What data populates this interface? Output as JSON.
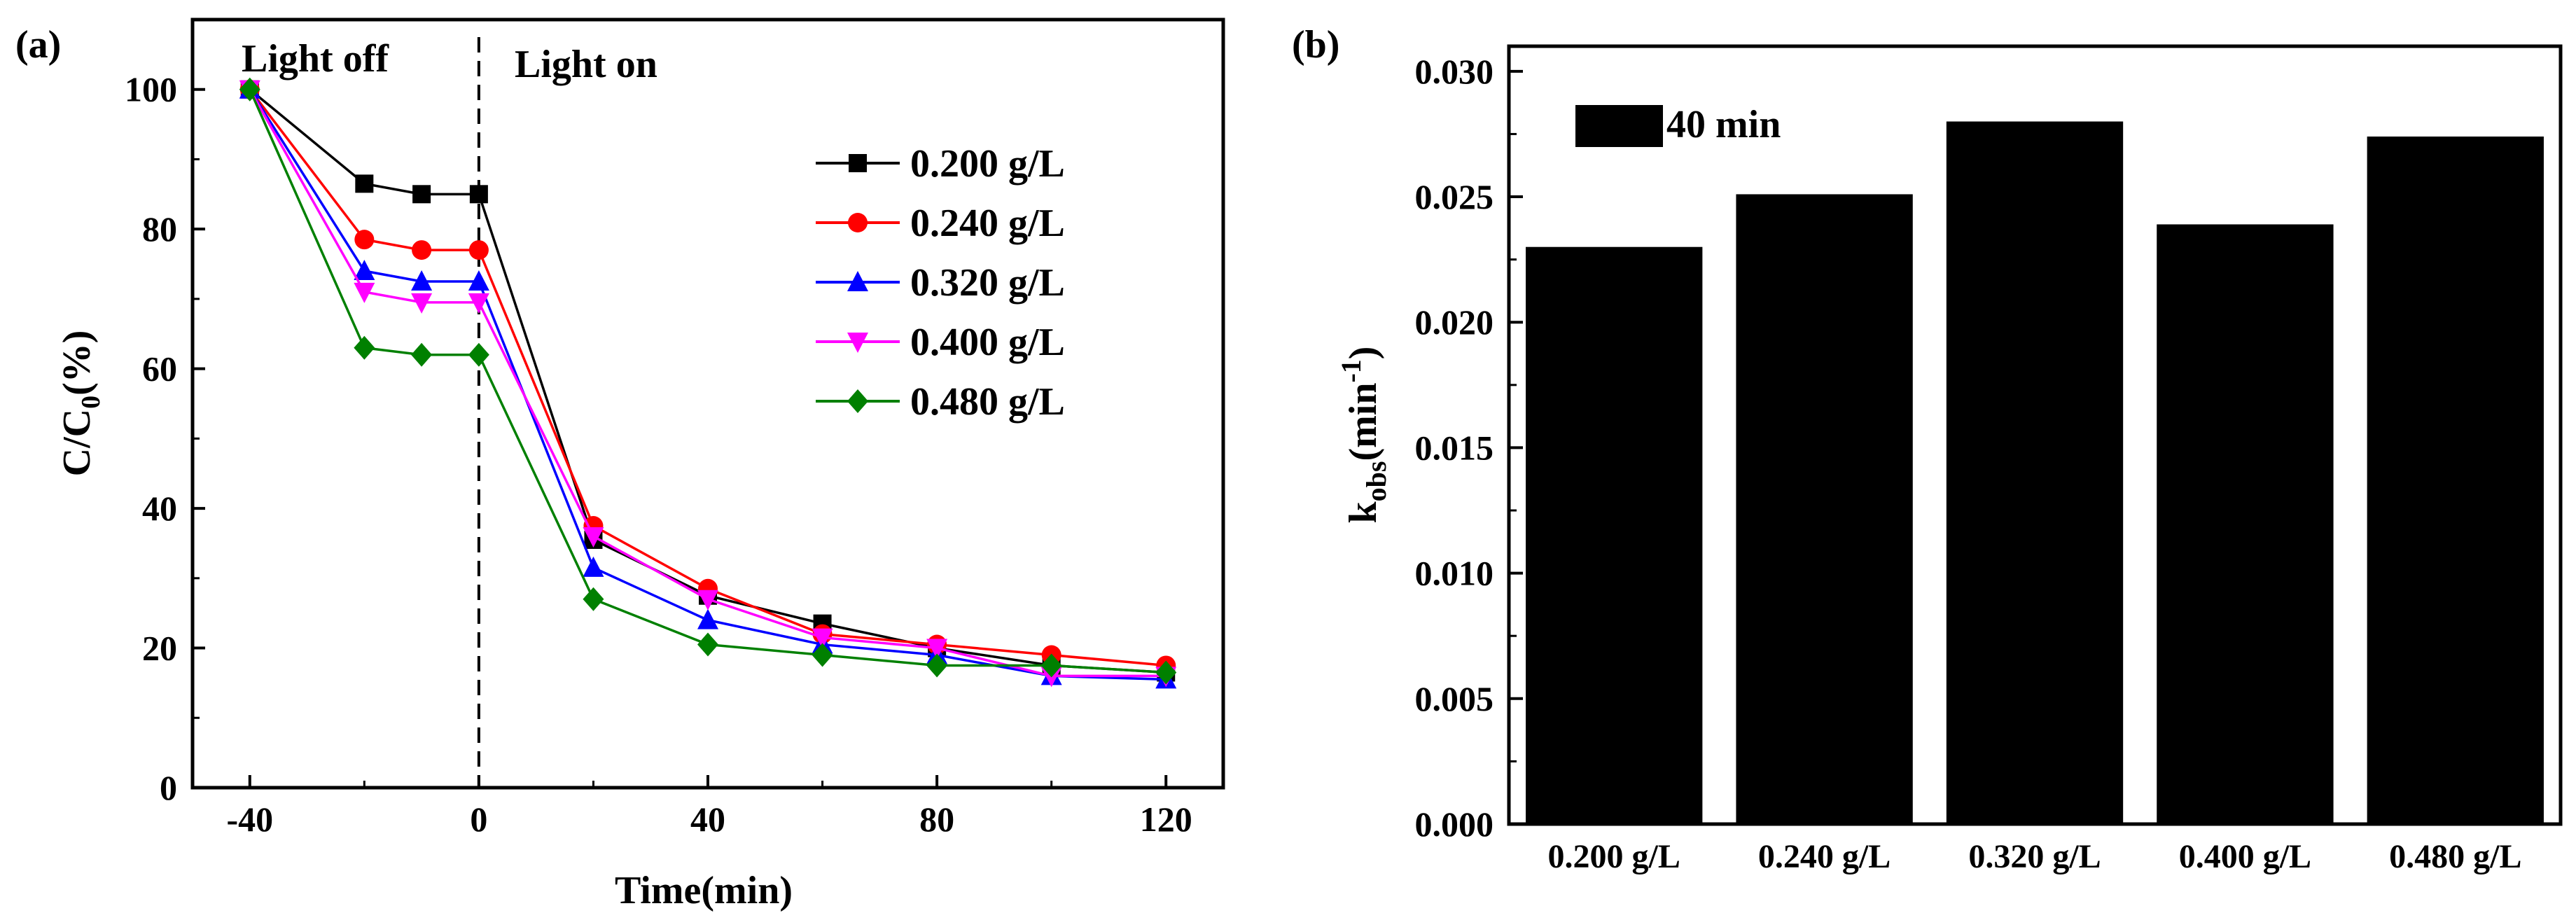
{
  "chart_data": [
    {
      "type": "line",
      "panel_label": "(a)",
      "xlabel": "Time(min)",
      "ylabel_main": "C/C",
      "ylabel_sub": "0",
      "ylabel_tail": "(%)",
      "xlim": [
        -50,
        130
      ],
      "ylim": [
        0,
        110
      ],
      "xticks": [
        -40,
        0,
        40,
        80,
        120
      ],
      "yticks": [
        0,
        20,
        40,
        60,
        80,
        100
      ],
      "x": [
        -40,
        -20,
        -10,
        0,
        20,
        40,
        60,
        80,
        100,
        120
      ],
      "divider_x": 0,
      "annotations": {
        "light_off": "Light off",
        "light_on": "Light on"
      },
      "series": [
        {
          "name": "0.200 g/L",
          "color": "#000000",
          "marker": "square",
          "values": [
            100,
            86.5,
            85,
            85,
            35.5,
            27.5,
            23.5,
            20,
            17.5,
            16.5
          ]
        },
        {
          "name": "0.240 g/L",
          "color": "#ff0000",
          "marker": "circle",
          "values": [
            100,
            78.5,
            77,
            77,
            37.5,
            28.5,
            22,
            20.5,
            19,
            17.5
          ]
        },
        {
          "name": "0.320 g/L",
          "color": "#0000ff",
          "marker": "triangle-up",
          "values": [
            100,
            74,
            72.5,
            72.5,
            31.5,
            24,
            20.5,
            19,
            16,
            15.5
          ]
        },
        {
          "name": "0.400 g/L",
          "color": "#ff00ff",
          "marker": "triangle-down",
          "values": [
            100,
            71,
            69.5,
            69.5,
            36,
            27,
            21.5,
            20,
            16,
            16
          ]
        },
        {
          "name": "0.480 g/L",
          "color": "#008000",
          "marker": "diamond",
          "values": [
            100,
            63,
            62,
            62,
            27,
            20.5,
            19,
            17.5,
            17.5,
            16.5
          ]
        }
      ]
    },
    {
      "type": "bar",
      "panel_label": "(b)",
      "ylabel_main": "k",
      "ylabel_sub": "obs",
      "ylabel_tail": "(min",
      "ylabel_sup": "-1",
      "ylabel_close": ")",
      "ylim": [
        0,
        0.031
      ],
      "yticks": [
        "0.000",
        "0.005",
        "0.010",
        "0.015",
        "0.020",
        "0.025",
        "0.030"
      ],
      "categories": [
        "0.200 g/L",
        "0.240 g/L",
        "0.320 g/L",
        "0.400 g/L",
        "0.480 g/L"
      ],
      "values": [
        0.023,
        0.0251,
        0.028,
        0.0239,
        0.0274
      ],
      "bar_color": "#000000",
      "legend": "40 min"
    }
  ]
}
